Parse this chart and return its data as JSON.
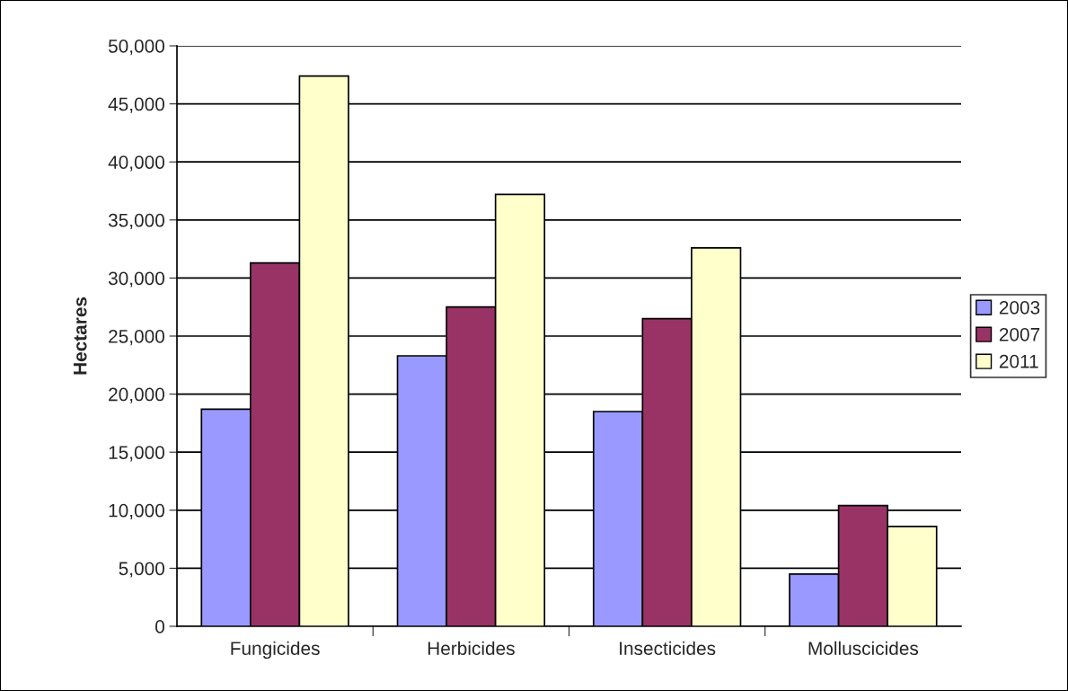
{
  "chart_data": {
    "type": "bar",
    "ylabel": "Hectares",
    "categories": [
      "Fungicides",
      "Herbicides",
      "Insecticides",
      "Molluscicides"
    ],
    "series": [
      {
        "name": "2003",
        "color": "#9999ff",
        "values": [
          18700,
          23300,
          18500,
          4500
        ]
      },
      {
        "name": "2007",
        "color": "#993366",
        "values": [
          31300,
          27500,
          26500,
          10400
        ]
      },
      {
        "name": "2011",
        "color": "#ffffcc",
        "values": [
          47400,
          37200,
          32600,
          8600
        ]
      }
    ],
    "ylim": [
      0,
      50000
    ],
    "yticks": [
      {
        "value": 0,
        "label": "0"
      },
      {
        "value": 5000,
        "label": "5,000"
      },
      {
        "value": 10000,
        "label": "10,000"
      },
      {
        "value": 15000,
        "label": "15,000"
      },
      {
        "value": 20000,
        "label": "20,000"
      },
      {
        "value": 25000,
        "label": "25,000"
      },
      {
        "value": 30000,
        "label": "30,000"
      },
      {
        "value": 35000,
        "label": "35,000"
      },
      {
        "value": 40000,
        "label": "40,000"
      },
      {
        "value": 45000,
        "label": "45,000"
      },
      {
        "value": 50000,
        "label": "50,000"
      }
    ],
    "grid": "y",
    "legend": "right"
  }
}
